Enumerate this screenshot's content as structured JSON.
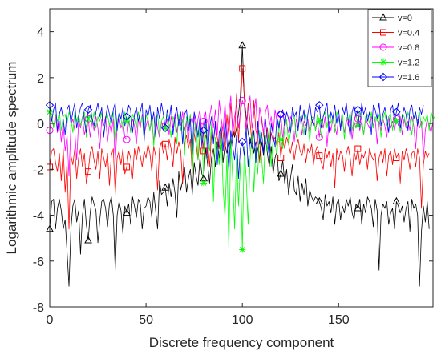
{
  "chart_data": {
    "type": "line",
    "xlabel": "Discrete frequency component",
    "ylabel": "Logarithmic amplitude spectrum",
    "xlim": [
      0,
      199
    ],
    "ylim": [
      -8,
      5
    ],
    "xticks": [
      0,
      50,
      100,
      150
    ],
    "yticks": [
      -8,
      -6,
      -4,
      -2,
      0,
      2,
      4
    ],
    "x_tick_labels": [
      "0",
      "50",
      "100",
      "150"
    ],
    "y_tick_labels": [
      "-8",
      "-6",
      "-4",
      "-2",
      "0",
      "2",
      "4"
    ],
    "grid": false,
    "legend_position": "top-right",
    "marker_x": [
      0,
      20,
      40,
      60,
      80,
      100,
      120,
      140,
      160,
      180
    ],
    "series": [
      {
        "name": "v=0",
        "color": "#000000",
        "marker": "triangle",
        "values": [
          -4.6,
          -3.4,
          -3.3,
          -4.6,
          -3.7,
          -3.3,
          -3.8,
          -4.6,
          -4.2,
          -5.6,
          -7.1,
          -4.6,
          -3.6,
          -3.3,
          -4.3,
          -3.8,
          -5.7,
          -4.0,
          -3.3,
          -4.4,
          -5.1,
          -3.9,
          -3.2,
          -3.5,
          -3.8,
          -5.2,
          -4.2,
          -3.4,
          -3.3,
          -3.7,
          -4.5,
          -3.5,
          -3.2,
          -4.0,
          -6.4,
          -4.0,
          -3.4,
          -3.8,
          -4.8,
          -3.6,
          -3.9,
          -3.5,
          -4.4,
          -3.2,
          -3.6,
          -4.1,
          -3.3,
          -3.5,
          -4.6,
          -3.7,
          -3.6,
          -3.2,
          -3.4,
          -4.1,
          -3.0,
          -3.8,
          -4.6,
          -2.5,
          -3.1,
          -3.0,
          -2.8,
          -3.6,
          -2.6,
          -3.2,
          -2.4,
          -3.0,
          -4.1,
          -2.1,
          -2.9,
          -2.5,
          -1.9,
          -3.0,
          -2.4,
          -2.0,
          -3.1,
          -1.7,
          -2.3,
          -2.7,
          -1.5,
          -2.2,
          -2.4,
          -1.1,
          -1.8,
          -2.6,
          -1.5,
          -1.1,
          -1.9,
          -0.8,
          -1.5,
          -0.6,
          -1.7,
          -0.9,
          -1.3,
          -0.7,
          -1.1,
          -0.3,
          -0.6,
          -0.2,
          0.4,
          1.2,
          3.4,
          1.1,
          0.3,
          -0.4,
          -0.9,
          -0.5,
          -1.3,
          -0.8,
          -1.1,
          -1.6,
          -0.8,
          -1.4,
          -0.6,
          -1.3,
          -1.9,
          -1.0,
          -2.2,
          -1.5,
          -1.2,
          -2.5,
          -2.2,
          -1.6,
          -2.6,
          -2.0,
          -3.1,
          -2.4,
          -1.8,
          -2.9,
          -3.1,
          -2.3,
          -3.4,
          -2.6,
          -3.1,
          -2.4,
          -3.6,
          -2.9,
          -3.2,
          -3.4,
          -3.2,
          -3.3,
          -3.4,
          -3.7,
          -4.2,
          -3.1,
          -3.6,
          -3.4,
          -3.9,
          -3.2,
          -4.4,
          -3.5,
          -3.3,
          -4.2,
          -3.6,
          -3.9,
          -3.3,
          -3.6,
          -3.2,
          -3.9,
          -4.2,
          -3.5,
          -3.7,
          -3.3,
          -4.4,
          -3.5,
          -3.9,
          -3.2,
          -3.4,
          -3.7,
          -4.5,
          -3.3,
          -3.8,
          -6.4,
          -4.0,
          -3.5,
          -3.7,
          -3.4,
          -4.4,
          -3.9,
          -3.7,
          -4.6,
          -3.4,
          -3.6,
          -3.9,
          -3.6,
          -4.3,
          -3.7,
          -3.4,
          -4.7,
          -3.3,
          -3.7,
          -3.5,
          -4.0,
          -7.1,
          -4.7,
          -3.6,
          -4.3,
          -3.4,
          -4.6
        ]
      },
      {
        "name": "v=0.4",
        "color": "#ff0000",
        "marker": "square",
        "values": [
          -1.9,
          -1.2,
          -1.1,
          -1.7,
          -2.1,
          -1.3,
          -2.5,
          -1.1,
          -3.0,
          -1.7,
          -4.6,
          -1.4,
          -1.8,
          -1.1,
          -2.4,
          -1.5,
          -1.1,
          -1.9,
          -1.3,
          -2.6,
          -2.1,
          -1.3,
          -1.0,
          -1.6,
          -2.0,
          -1.2,
          -2.4,
          -1.1,
          -1.5,
          -1.9,
          -1.3,
          -2.7,
          -1.4,
          -1.1,
          -3.1,
          -1.5,
          -1.2,
          -1.8,
          -1.1,
          -2.2,
          -1.9,
          -1.2,
          -1.5,
          -2.4,
          -1.1,
          -1.6,
          -1.0,
          -1.4,
          -1.9,
          -1.2,
          -1.5,
          -0.9,
          -1.3,
          -2.1,
          -1.0,
          -1.4,
          -2.9,
          -1.1,
          -0.8,
          -1.3,
          -0.9,
          -1.6,
          -0.7,
          -1.1,
          -1.9,
          -0.6,
          -1.3,
          -0.8,
          -1.2,
          -2.6,
          -0.9,
          -0.5,
          -1.1,
          -0.7,
          -2.2,
          -0.4,
          -0.9,
          -1.6,
          -0.6,
          -0.3,
          -1.2,
          -0.5,
          -0.8,
          -1.9,
          -0.4,
          -0.7,
          -0.1,
          -0.6,
          -1.1,
          0.2,
          -0.4,
          -1.3,
          0.4,
          -0.6,
          0.9,
          -0.2,
          -0.5,
          1.3,
          -0.8,
          0.6,
          2.4,
          1.2,
          -0.4,
          0.9,
          0.1,
          -0.9,
          1.0,
          -0.3,
          -0.6,
          -1.7,
          0.3,
          -0.5,
          -0.9,
          -0.2,
          -1.2,
          -0.4,
          -0.8,
          -0.6,
          -1.0,
          -0.4,
          -1.5,
          -0.7,
          -1.1,
          -0.6,
          -0.9,
          -1.3,
          -0.8,
          -1.6,
          -1.0,
          -0.7,
          -1.2,
          -1.4,
          -0.9,
          -1.7,
          -1.1,
          -1.3,
          -0.9,
          -1.8,
          -1.2,
          -1.0,
          -1.4,
          -1.7,
          -2.0,
          -1.1,
          -1.5,
          -1.2,
          -1.9,
          -1.3,
          -2.8,
          -1.1,
          -1.6,
          -1.2,
          -1.4,
          -2.1,
          -1.3,
          -1.0,
          -1.5,
          -2.3,
          -1.2,
          -1.6,
          -1.1,
          -1.8,
          -1.3,
          -1.5,
          -1.2,
          -2.0,
          -1.1,
          -1.4,
          -1.6,
          -1.3,
          -2.5,
          -1.5,
          -1.2,
          -1.7,
          -1.1,
          -2.3,
          -1.4,
          -1.2,
          -1.8,
          -1.1,
          -1.5,
          -1.3,
          -2.6,
          -1.2,
          -1.6,
          -1.1,
          -1.4,
          -2.0,
          -1.3,
          -1.2,
          -1.9,
          -1.1,
          -1.5,
          -3.7,
          -1.8,
          -1.2,
          -1.5,
          -1.3
        ]
      },
      {
        "name": "v=0.8",
        "color": "#ff00ff",
        "marker": "circle",
        "values": [
          -0.3,
          0.2,
          -0.1,
          0.3,
          -0.4,
          0.1,
          -0.8,
          0.0,
          -1.2,
          -0.5,
          -2.3,
          -0.1,
          0.2,
          -0.3,
          -1.6,
          0.1,
          -0.2,
          0.3,
          -0.5,
          -0.1,
          0.2,
          -0.6,
          0.1,
          -0.3,
          0.3,
          -0.2,
          -1.1,
          0.2,
          -0.1,
          0.3,
          -0.8,
          0.0,
          -0.4,
          0.2,
          -1.7,
          -0.1,
          0.3,
          -0.2,
          0.1,
          -0.6,
          -0.7,
          0.1,
          -0.3,
          0.2,
          -0.1,
          -0.9,
          0.2,
          -0.2,
          0.4,
          -0.5,
          -0.1,
          0.2,
          -0.3,
          0.1,
          -0.8,
          0.3,
          -0.2,
          -0.6,
          0.1,
          -0.3,
          -0.1,
          0.2,
          -0.5,
          0.3,
          -0.2,
          0.4,
          -0.4,
          0.2,
          -0.1,
          0.5,
          -0.3,
          0.1,
          -0.8,
          0.3,
          0.0,
          0.4,
          -0.6,
          0.2,
          0.6,
          -0.4,
          0.1,
          0.5,
          -0.9,
          0.3,
          0.8,
          -0.2,
          0.6,
          -0.5,
          1.0,
          0.2,
          -0.3,
          0.9,
          -0.7,
          0.4,
          1.2,
          -0.5,
          0.3,
          0.8,
          -0.2,
          0.5,
          1.0,
          0.8,
          -0.3,
          0.6,
          1.2,
          -0.2,
          0.4,
          1.1,
          -0.6,
          0.7,
          0.2,
          -0.4,
          0.5,
          0.8,
          -0.1,
          0.3,
          -0.5,
          0.6,
          0.1,
          -0.2,
          0.4,
          -0.7,
          0.2,
          0.0,
          -0.4,
          0.3,
          0.1,
          -0.8,
          0.2,
          -0.2,
          0.3,
          -0.5,
          0.1,
          -0.1,
          0.2,
          -0.4,
          0.0,
          0.3,
          -0.3,
          0.1,
          -0.6,
          0.2,
          -0.2,
          0.3,
          -1.0,
          0.1,
          -0.3,
          0.2,
          -0.1,
          -0.5,
          0.3,
          -0.2,
          0.1,
          -0.4,
          0.2,
          -0.1,
          0.3,
          -0.7,
          0.1,
          -0.2,
          0.2,
          -0.3,
          0.1,
          -0.5,
          0.2,
          0.0,
          -0.2,
          0.3,
          -0.1,
          0.2,
          -0.9,
          0.1,
          -0.3,
          0.2,
          -0.1,
          -0.6,
          0.3,
          -0.2,
          0.1,
          -0.3,
          0.2,
          -0.1,
          0.3,
          -0.5,
          0.2,
          -0.2,
          0.1,
          -0.3,
          0.3,
          -0.1,
          -1.1,
          0.2,
          -0.2,
          0.1,
          -1.5,
          -0.3,
          0.2,
          -0.1,
          -0.4,
          0.1
        ]
      },
      {
        "name": "v=1.2",
        "color": "#00ff00",
        "marker": "asterisk",
        "values": [
          0.5,
          0.3,
          -0.2,
          0.4,
          0.1,
          0.5,
          -0.3,
          0.3,
          0.4,
          0.0,
          0.5,
          0.2,
          -0.4,
          0.5,
          0.1,
          0.4,
          -0.1,
          0.3,
          0.5,
          -0.6,
          0.2,
          0.4,
          0.0,
          0.5,
          -0.2,
          0.3,
          0.1,
          0.5,
          -0.5,
          0.2,
          0.4,
          -0.1,
          0.3,
          0.5,
          -0.8,
          0.1,
          0.4,
          0.2,
          -0.3,
          0.5,
          0.1,
          0.3,
          -0.4,
          0.4,
          0.2,
          -0.2,
          0.5,
          0.0,
          0.3,
          -0.7,
          0.4,
          0.1,
          -0.3,
          0.5,
          -1.0,
          0.2,
          0.4,
          -0.5,
          0.1,
          0.3,
          -0.2,
          0.4,
          0.0,
          -0.6,
          0.3,
          0.1,
          -0.9,
          0.4,
          -0.3,
          0.2,
          -1.4,
          0.3,
          -0.1,
          0.4,
          -2.2,
          -0.4,
          0.2,
          -1.6,
          0.1,
          -0.5,
          -2.6,
          0.2,
          -0.8,
          -1.2,
          0.0,
          -3.4,
          -0.6,
          -1.0,
          -1.8,
          -0.3,
          -2.8,
          -4.1,
          -1.4,
          -5.5,
          -0.7,
          -2.4,
          -4.6,
          -1.3,
          -3.6,
          -1.7,
          -5.5,
          -1.0,
          -2.4,
          -4.4,
          -1.6,
          -0.4,
          -3.0,
          -1.1,
          -2.2,
          -0.3,
          -1.5,
          -2.6,
          -0.5,
          -1.2,
          -0.2,
          -1.9,
          -0.6,
          -0.9,
          -1.4,
          0.1,
          -0.7,
          -1.1,
          -0.2,
          0.2,
          -0.9,
          -0.4,
          0.1,
          0.3,
          -0.6,
          -0.2,
          0.3,
          0.1,
          -0.5,
          0.4,
          0.0,
          -0.8,
          0.3,
          0.2,
          -0.3,
          0.4,
          0.1,
          -0.6,
          0.3,
          0.5,
          -0.2,
          0.4,
          0.0,
          0.3,
          -0.4,
          0.5,
          0.2,
          -0.1,
          0.4,
          -0.7,
          0.3,
          0.1,
          0.5,
          -0.3,
          0.2,
          0.4,
          -0.1,
          0.5,
          0.2,
          -0.5,
          0.3,
          0.4,
          0.0,
          0.5,
          -0.2,
          0.3,
          0.1,
          0.4,
          -0.6,
          0.2,
          0.5,
          -0.1,
          0.3,
          0.4,
          -0.3,
          0.5,
          0.1,
          0.2,
          -0.4,
          0.4,
          0.3,
          -0.1,
          0.5,
          0.2,
          -0.5,
          0.3,
          0.4,
          0.0,
          0.5,
          -0.2,
          0.3,
          0.1,
          0.4,
          -0.3,
          0.5,
          0.2,
          0.3
        ]
      },
      {
        "name": "v=1.6",
        "color": "#0000ff",
        "marker": "diamond",
        "values": [
          0.8,
          0.1,
          0.6,
          0.9,
          -0.3,
          0.4,
          0.7,
          0.2,
          -0.5,
          0.6,
          0.8,
          0.0,
          0.5,
          0.9,
          -0.2,
          0.3,
          0.7,
          0.9,
          0.1,
          -0.4,
          0.6,
          0.8,
          0.2,
          -0.1,
          0.5,
          0.9,
          0.3,
          0.7,
          -0.6,
          0.2,
          0.8,
          0.4,
          0.0,
          0.6,
          0.9,
          -0.3,
          0.5,
          0.2,
          0.7,
          -0.1,
          0.3,
          0.8,
          0.6,
          -0.4,
          0.4,
          0.7,
          0.1,
          0.5,
          0.9,
          -0.8,
          0.6,
          0.3,
          0.8,
          0.0,
          0.5,
          -0.6,
          0.7,
          0.2,
          0.9,
          0.4,
          -0.2,
          0.6,
          0.1,
          0.8,
          -0.5,
          0.3,
          0.7,
          -0.1,
          0.5,
          -0.9,
          0.4,
          0.6,
          -0.3,
          0.2,
          -1.4,
          0.5,
          0.1,
          -0.6,
          0.3,
          -1.0,
          -0.3,
          0.2,
          -1.5,
          -0.2,
          0.3,
          -0.9,
          0.1,
          -1.8,
          -0.4,
          -0.1,
          -1.2,
          0.2,
          -0.7,
          -2.1,
          -0.3,
          -1.0,
          -1.6,
          -0.5,
          -2.4,
          -1.1,
          -0.8,
          -1.4,
          -0.2,
          -1.9,
          -0.6,
          -1.1,
          -0.3,
          -1.7,
          0.1,
          -0.9,
          -0.4,
          -1.3,
          0.2,
          -0.7,
          -1.5,
          0.0,
          -0.5,
          -1.0,
          0.3,
          -0.2,
          0.4,
          0.6,
          -0.1,
          0.5,
          0.2,
          -0.4,
          0.7,
          0.3,
          0.5,
          -0.3,
          0.8,
          0.1,
          0.6,
          -0.5,
          0.4,
          0.9,
          0.2,
          -0.1,
          0.7,
          0.5,
          0.8,
          -0.2,
          0.3,
          0.6,
          0.9,
          -0.4,
          0.5,
          0.2,
          0.8,
          0.0,
          0.6,
          -0.3,
          0.7,
          0.4,
          0.9,
          0.1,
          -0.6,
          0.5,
          0.8,
          0.3,
          0.6,
          -0.2,
          0.9,
          0.4,
          0.7,
          0.1,
          0.5,
          -0.5,
          0.8,
          0.6,
          0.2,
          0.9,
          -0.1,
          0.4,
          0.7,
          0.3,
          -0.4,
          0.6,
          0.8,
          0.1,
          0.5,
          0.9,
          -0.2,
          0.3,
          0.7,
          0.4,
          -0.3,
          0.6,
          0.8,
          0.2,
          0.5,
          -0.1,
          0.7,
          0.4,
          0.8
        ]
      }
    ]
  }
}
